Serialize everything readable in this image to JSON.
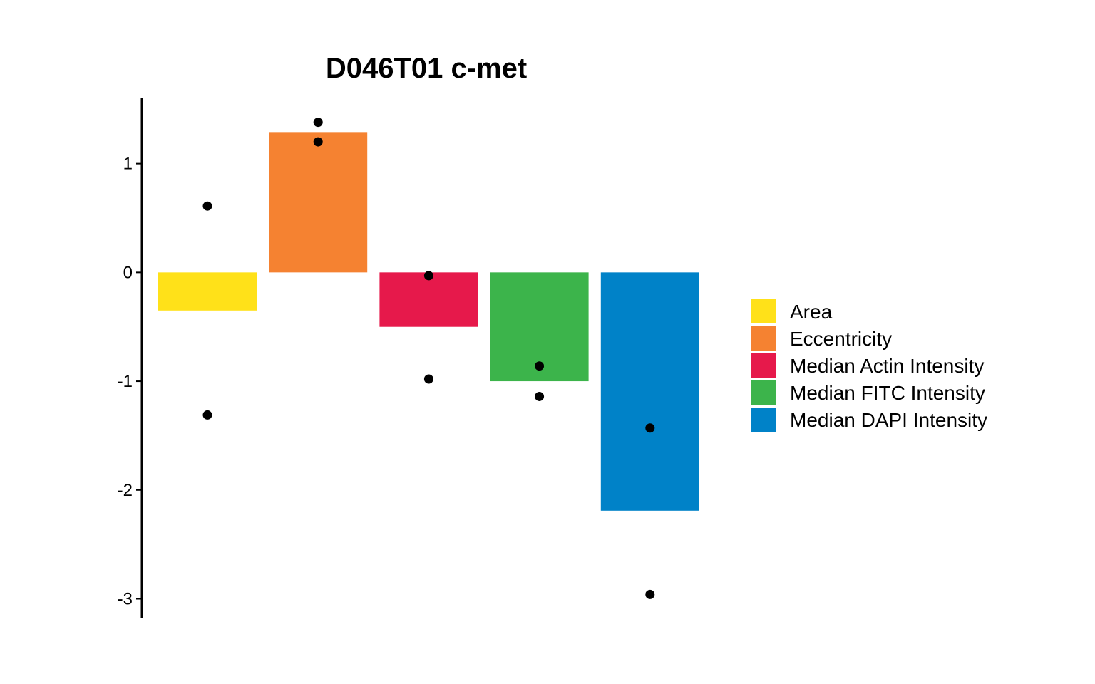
{
  "chart_data": {
    "type": "bar",
    "title": "D046T01 c-met",
    "xlabel": "",
    "ylabel": "",
    "ylim": [
      -3.18,
      1.6
    ],
    "yticks": [
      1,
      0,
      -1,
      -2,
      -3
    ],
    "grid": false,
    "legend_position": "right",
    "categories": [
      "Area",
      "Eccentricity",
      "Median Actin Intensity",
      "Median FITC Intensity",
      "Median DAPI Intensity"
    ],
    "values": [
      -0.35,
      1.29,
      -0.5,
      -1.0,
      -2.19
    ],
    "colors": [
      "#FFE119",
      "#F58231",
      "#E6194B",
      "#3CB44B",
      "#0082C8"
    ],
    "points": [
      [
        0.61,
        -1.31
      ],
      [
        1.38,
        1.2
      ],
      [
        -0.03,
        -0.98
      ],
      [
        -0.86,
        -1.14
      ],
      [
        -1.43,
        -2.96
      ]
    ],
    "legend": [
      "Area",
      "Eccentricity",
      "Median Actin Intensity",
      "Median FITC Intensity",
      "Median DAPI Intensity"
    ]
  }
}
